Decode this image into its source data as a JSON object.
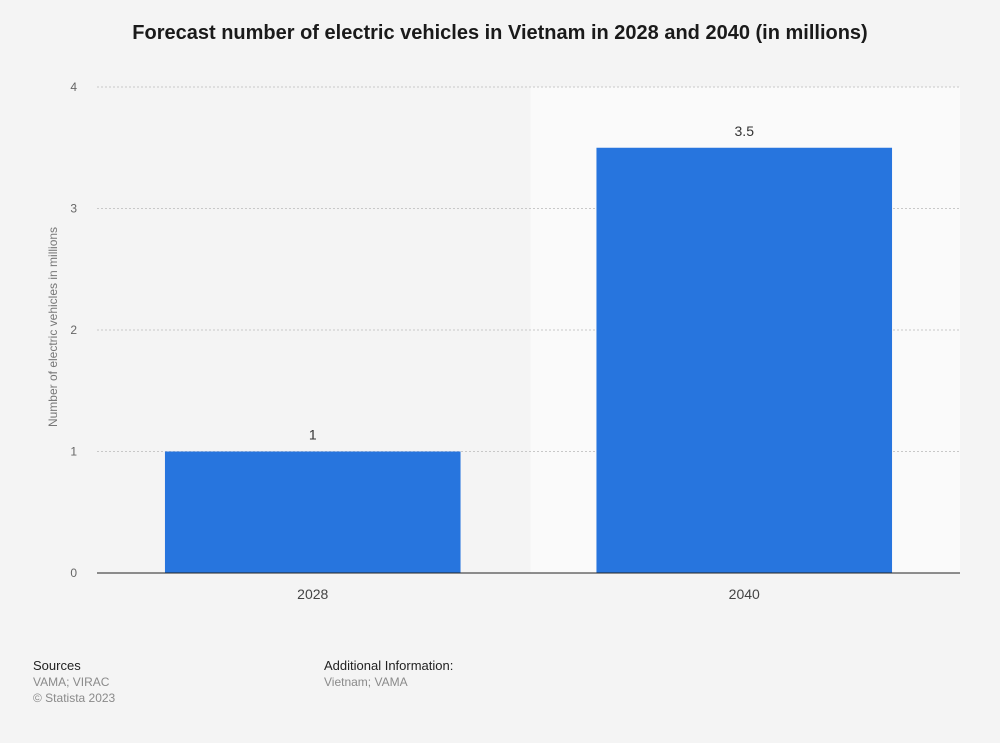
{
  "chart_data": {
    "type": "bar",
    "title": "Forecast number of electric vehicles in Vietnam in 2028 and 2040 (in millions)",
    "categories": [
      "2028",
      "2040"
    ],
    "values": [
      1,
      3.5
    ],
    "value_labels": [
      "1",
      "3.5"
    ],
    "xlabel": "",
    "ylabel": "Number of electric vehicles in millions",
    "ylim": [
      0,
      4
    ],
    "yticks": [
      "0",
      "1",
      "2",
      "3",
      "4"
    ],
    "grid": true,
    "bar_color": "#2775de",
    "highlight_category": "2040"
  },
  "footer": {
    "sources_heading": "Sources",
    "sources_text": "VAMA; VIRAC",
    "copyright": "© Statista 2023",
    "additional_heading": "Additional Information:",
    "additional_text": "Vietnam; VAMA"
  }
}
